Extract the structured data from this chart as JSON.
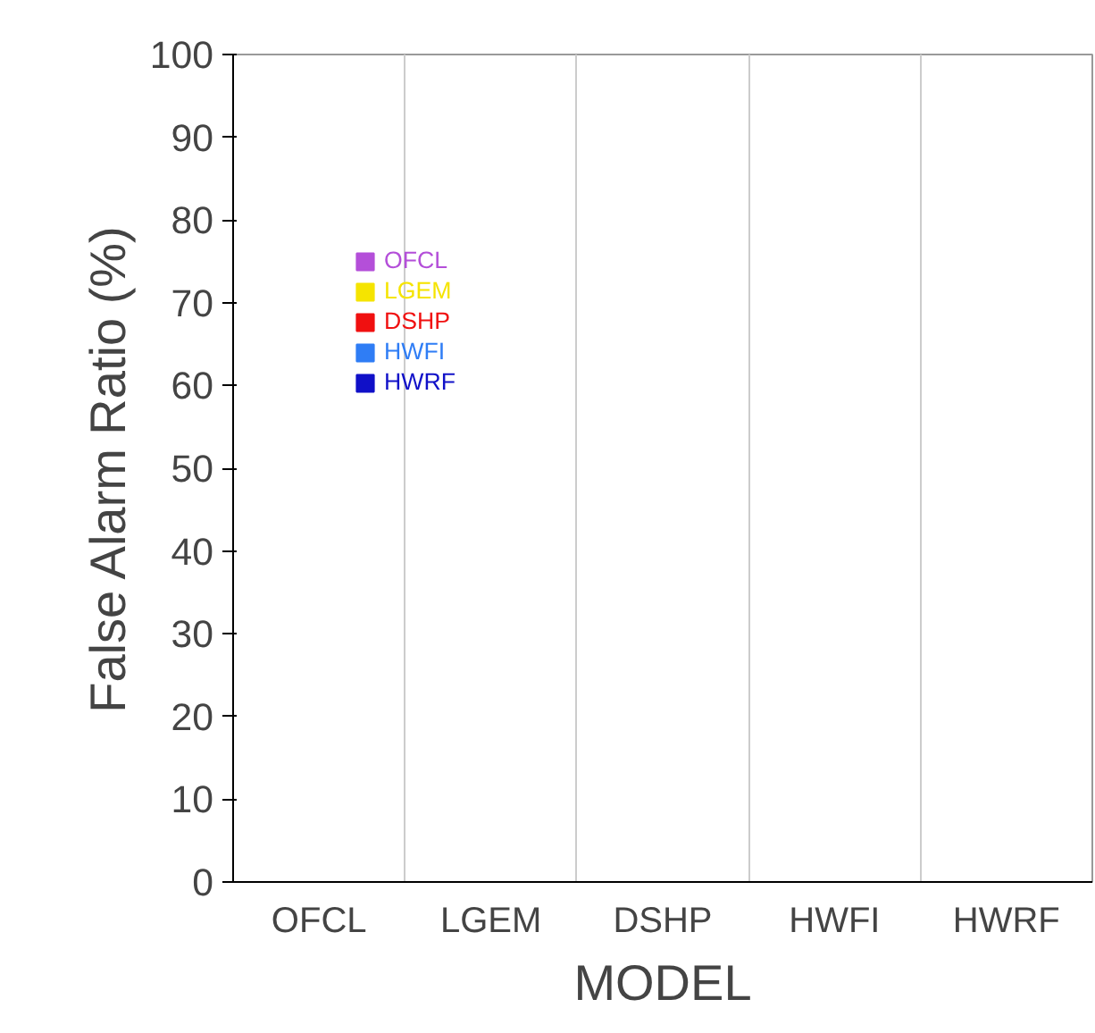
{
  "chart_data": {
    "type": "bar",
    "xlabel": "MODEL",
    "ylabel": "False Alarm Ratio (%)",
    "categories": [
      "OFCL",
      "LGEM",
      "DSHP",
      "HWFI",
      "HWRF"
    ],
    "series": [
      {
        "name": "OFCL",
        "color": "#b44fd9",
        "values": [
          0,
          null,
          null,
          null,
          null
        ]
      },
      {
        "name": "LGEM",
        "color": "#f5e400",
        "values": [
          null,
          0,
          null,
          null,
          null
        ]
      },
      {
        "name": "DSHP",
        "color": "#f01010",
        "values": [
          null,
          null,
          0,
          null,
          null
        ]
      },
      {
        "name": "HWFI",
        "color": "#2f7df5",
        "values": [
          null,
          null,
          null,
          0,
          null
        ]
      },
      {
        "name": "HWRF",
        "color": "#1010c8",
        "values": [
          null,
          null,
          null,
          null,
          0
        ]
      }
    ],
    "ylim": [
      0,
      100
    ],
    "yticks": [
      0,
      10,
      20,
      30,
      40,
      50,
      60,
      70,
      80,
      90,
      100
    ],
    "grid": "x",
    "legend": "top left"
  }
}
